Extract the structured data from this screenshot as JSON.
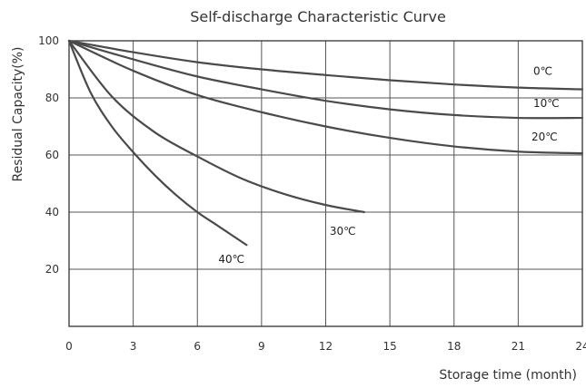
{
  "chart_data": {
    "type": "line",
    "title": "Self-discharge Characteristic Curve",
    "xlabel": "Storage time (month)",
    "ylabel": "Residual Capacity(%)",
    "xlim": [
      0,
      24
    ],
    "ylim": [
      0,
      100
    ],
    "x_ticks": [
      0,
      3,
      6,
      9,
      12,
      15,
      18,
      21,
      24
    ],
    "y_ticks": [
      20,
      40,
      60,
      80,
      100
    ],
    "grid": true,
    "series": [
      {
        "name": "0℃",
        "x": [
          0,
          3,
          6,
          9,
          12,
          15,
          18,
          21,
          24
        ],
        "y": [
          100,
          96,
          92.5,
          90,
          88,
          86.2,
          84.7,
          83.6,
          83
        ]
      },
      {
        "name": "10℃",
        "x": [
          0,
          3,
          6,
          9,
          12,
          15,
          18,
          21,
          24
        ],
        "y": [
          100,
          93.5,
          87.5,
          83,
          79,
          76,
          74,
          73,
          73
        ]
      },
      {
        "name": "20℃",
        "x": [
          0,
          3,
          6,
          9,
          12,
          15,
          18,
          21,
          24
        ],
        "y": [
          100,
          89.5,
          81,
          75,
          70,
          66,
          63,
          61.2,
          60.6
        ]
      },
      {
        "name": "30℃",
        "x": [
          0,
          2,
          4,
          6,
          8,
          10,
          12,
          13.8
        ],
        "y": [
          100,
          80.5,
          68,
          59.5,
          52,
          46.5,
          42.5,
          40
        ]
      },
      {
        "name": "40℃",
        "x": [
          0,
          1,
          2,
          3,
          4,
          5,
          6,
          7,
          8.3
        ],
        "y": [
          100,
          82,
          70,
          61,
          53,
          46,
          40,
          35,
          28.5
        ]
      }
    ]
  }
}
